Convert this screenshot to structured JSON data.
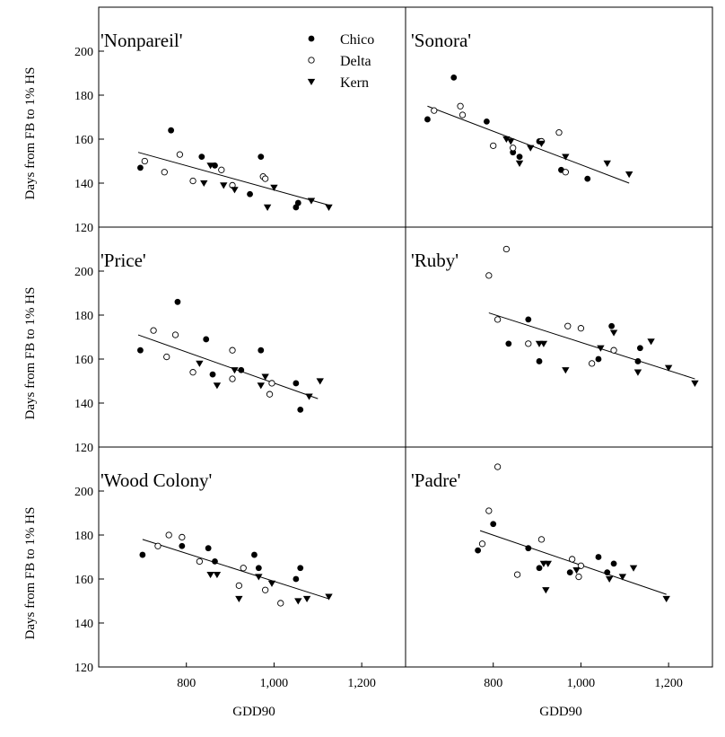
{
  "chart_data": {
    "type": "scatter",
    "layout": "3x2 panel grid, shared axes",
    "xlabel": "GDD90",
    "ylabel": "Days from FB to 1% HS",
    "x_ticks": [
      800,
      1000,
      1200
    ],
    "x_tick_labels": [
      "800",
      "1,000",
      "1,200"
    ],
    "y_ticks": [
      120,
      140,
      160,
      180,
      200
    ],
    "y_tick_labels": [
      "120",
      "140",
      "160",
      "180",
      "200"
    ],
    "ylim": [
      120,
      220
    ],
    "legend": {
      "placement": "top-center of first panel",
      "entries": [
        {
          "label": "Chico",
          "marker": "filled-circle"
        },
        {
          "label": "Delta",
          "marker": "open-circle"
        },
        {
          "label": "Kern",
          "marker": "down-triangle"
        }
      ]
    },
    "panels": [
      {
        "title": "'Nonpareil'",
        "xlim": [
          600,
          1300
        ],
        "trend": [
          [
            690,
            154
          ],
          [
            1125,
            130
          ]
        ],
        "series": [
          {
            "name": "Chico",
            "points": [
              [
                695,
                147
              ],
              [
                765,
                164
              ],
              [
                835,
                152
              ],
              [
                865,
                148
              ],
              [
                945,
                135
              ],
              [
                970,
                152
              ],
              [
                1050,
                129
              ],
              [
                1055,
                131
              ]
            ]
          },
          {
            "name": "Delta",
            "points": [
              [
                705,
                150
              ],
              [
                750,
                145
              ],
              [
                785,
                153
              ],
              [
                815,
                141
              ],
              [
                880,
                146
              ],
              [
                905,
                139
              ],
              [
                975,
                143
              ],
              [
                980,
                142
              ]
            ]
          },
          {
            "name": "Kern",
            "points": [
              [
                840,
                140
              ],
              [
                855,
                148
              ],
              [
                885,
                139
              ],
              [
                910,
                137
              ],
              [
                985,
                129
              ],
              [
                1000,
                138
              ],
              [
                1085,
                132
              ],
              [
                1125,
                129
              ]
            ]
          }
        ]
      },
      {
        "title": "'Sonora'",
        "xlim": [
          600,
          1300
        ],
        "trend": [
          [
            650,
            175
          ],
          [
            1110,
            140
          ]
        ],
        "series": [
          {
            "name": "Chico",
            "points": [
              [
                650,
                169
              ],
              [
                710,
                188
              ],
              [
                785,
                168
              ],
              [
                845,
                154
              ],
              [
                860,
                152
              ],
              [
                905,
                159
              ],
              [
                955,
                146
              ],
              [
                1015,
                142
              ]
            ]
          },
          {
            "name": "Delta",
            "points": [
              [
                665,
                173
              ],
              [
                725,
                175
              ],
              [
                730,
                171
              ],
              [
                800,
                157
              ],
              [
                845,
                156
              ],
              [
                910,
                159
              ],
              [
                950,
                163
              ],
              [
                965,
                145
              ]
            ]
          },
          {
            "name": "Kern",
            "points": [
              [
                830,
                160
              ],
              [
                840,
                159
              ],
              [
                860,
                149
              ],
              [
                885,
                156
              ],
              [
                910,
                158
              ],
              [
                965,
                152
              ],
              [
                1060,
                149
              ],
              [
                1110,
                144
              ]
            ]
          }
        ]
      },
      {
        "title": "'Price'",
        "xlim": [
          600,
          1300
        ],
        "trend": [
          [
            690,
            171
          ],
          [
            1100,
            142
          ]
        ],
        "series": [
          {
            "name": "Chico",
            "points": [
              [
                695,
                164
              ],
              [
                780,
                186
              ],
              [
                845,
                169
              ],
              [
                860,
                153
              ],
              [
                925,
                155
              ],
              [
                970,
                164
              ],
              [
                1050,
                149
              ],
              [
                1060,
                137
              ]
            ]
          },
          {
            "name": "Delta",
            "points": [
              [
                725,
                173
              ],
              [
                755,
                161
              ],
              [
                775,
                171
              ],
              [
                815,
                154
              ],
              [
                905,
                151
              ],
              [
                905,
                164
              ],
              [
                995,
                149
              ],
              [
                990,
                144
              ]
            ]
          },
          {
            "name": "Kern",
            "points": [
              [
                830,
                158
              ],
              [
                870,
                148
              ],
              [
                910,
                155
              ],
              [
                970,
                148
              ],
              [
                980,
                152
              ],
              [
                1080,
                143
              ],
              [
                1105,
                150
              ]
            ]
          }
        ]
      },
      {
        "title": "'Ruby'",
        "xlim": [
          600,
          1300
        ],
        "trend": [
          [
            790,
            181
          ],
          [
            1260,
            151
          ]
        ],
        "series": [
          {
            "name": "Chico",
            "points": [
              [
                835,
                167
              ],
              [
                880,
                178
              ],
              [
                905,
                159
              ],
              [
                1040,
                160
              ],
              [
                1070,
                175
              ],
              [
                1130,
                159
              ],
              [
                1135,
                165
              ]
            ]
          },
          {
            "name": "Delta",
            "points": [
              [
                790,
                198
              ],
              [
                810,
                178
              ],
              [
                830,
                210
              ],
              [
                880,
                167
              ],
              [
                970,
                175
              ],
              [
                1000,
                174
              ],
              [
                1025,
                158
              ],
              [
                1075,
                164
              ]
            ]
          },
          {
            "name": "Kern",
            "points": [
              [
                905,
                167
              ],
              [
                915,
                167
              ],
              [
                965,
                155
              ],
              [
                1045,
                165
              ],
              [
                1075,
                172
              ],
              [
                1130,
                154
              ],
              [
                1160,
                168
              ],
              [
                1200,
                156
              ],
              [
                1260,
                149
              ]
            ]
          }
        ]
      },
      {
        "title": "'Wood Colony'",
        "xlim": [
          600,
          1300
        ],
        "trend": [
          [
            700,
            178
          ],
          [
            1125,
            151
          ]
        ],
        "series": [
          {
            "name": "Chico",
            "points": [
              [
                700,
                171
              ],
              [
                790,
                175
              ],
              [
                850,
                174
              ],
              [
                865,
                168
              ],
              [
                955,
                171
              ],
              [
                965,
                165
              ],
              [
                1050,
                160
              ],
              [
                1060,
                165
              ]
            ]
          },
          {
            "name": "Delta",
            "points": [
              [
                735,
                175
              ],
              [
                760,
                180
              ],
              [
                790,
                179
              ],
              [
                830,
                168
              ],
              [
                920,
                157
              ],
              [
                930,
                165
              ],
              [
                980,
                155
              ],
              [
                1015,
                149
              ]
            ]
          },
          {
            "name": "Kern",
            "points": [
              [
                855,
                162
              ],
              [
                870,
                162
              ],
              [
                920,
                151
              ],
              [
                965,
                161
              ],
              [
                995,
                158
              ],
              [
                1055,
                150
              ],
              [
                1075,
                151
              ],
              [
                1125,
                152
              ]
            ]
          }
        ]
      },
      {
        "title": "'Padre'",
        "xlim": [
          600,
          1300
        ],
        "trend": [
          [
            770,
            182
          ],
          [
            1195,
            153
          ]
        ],
        "series": [
          {
            "name": "Chico",
            "points": [
              [
                765,
                173
              ],
              [
                800,
                185
              ],
              [
                880,
                174
              ],
              [
                905,
                165
              ],
              [
                975,
                163
              ],
              [
                1040,
                170
              ],
              [
                1060,
                163
              ],
              [
                1075,
                167
              ]
            ]
          },
          {
            "name": "Delta",
            "points": [
              [
                775,
                176
              ],
              [
                790,
                191
              ],
              [
                810,
                211
              ],
              [
                855,
                162
              ],
              [
                910,
                178
              ],
              [
                980,
                169
              ],
              [
                995,
                161
              ],
              [
                1000,
                166
              ]
            ]
          },
          {
            "name": "Kern",
            "points": [
              [
                915,
                167
              ],
              [
                920,
                155
              ],
              [
                925,
                167
              ],
              [
                990,
                164
              ],
              [
                1065,
                160
              ],
              [
                1095,
                161
              ],
              [
                1120,
                165
              ],
              [
                1195,
                151
              ]
            ]
          }
        ]
      }
    ]
  }
}
